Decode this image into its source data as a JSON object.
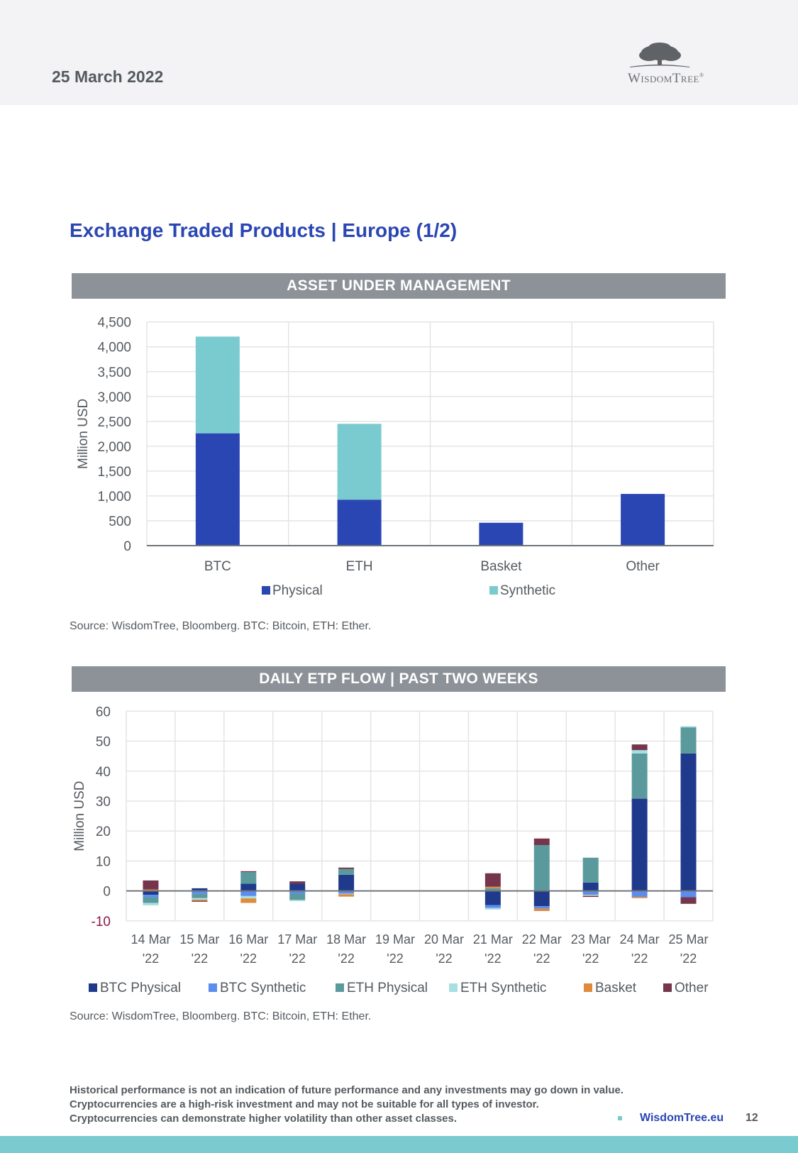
{
  "header": {
    "date": "25 March 2022",
    "logo_text": "WisdomTree",
    "logo_mark": "®"
  },
  "page_title": "Exchange Traded Products | Europe (1/2)",
  "sections": {
    "aum": {
      "banner": "ASSET UNDER MANAGEMENT",
      "source": "Source: WisdomTree, Bloomberg. BTC: Bitcoin, ETH: Ether."
    },
    "flow": {
      "banner": "DAILY ETP FLOW | PAST TWO WEEKS",
      "source": "Source: WisdomTree, Bloomberg. BTC: Bitcoin, ETH: Ether."
    }
  },
  "colors": {
    "physical": "#2a46b3",
    "synthetic": "#7acbd0",
    "btc_physical": "#1f3a8a",
    "btc_synthetic": "#5b8def",
    "eth_physical": "#5a9a9c",
    "eth_synthetic": "#a8dfe3",
    "basket": "#e08a3c",
    "other": "#75364d",
    "negative_tick": "#8b1a4a"
  },
  "chart_data": [
    {
      "type": "bar",
      "stacked": true,
      "title": "ASSET UNDER MANAGEMENT",
      "xlabel": "",
      "ylabel": "Million USD",
      "categories": [
        "BTC",
        "ETH",
        "Basket",
        "Other"
      ],
      "series": [
        {
          "name": "Physical",
          "values": [
            2260,
            925,
            460,
            1040
          ]
        },
        {
          "name": "Synthetic",
          "values": [
            1945,
            1525,
            0,
            0
          ]
        }
      ],
      "ylim": [
        0,
        4500
      ],
      "yticks": [
        0,
        500,
        1000,
        1500,
        2000,
        2500,
        3000,
        3500,
        4000,
        4500
      ],
      "ytick_labels": [
        "0",
        "500",
        "1,000",
        "1,500",
        "2,000",
        "2,500",
        "3,000",
        "3,500",
        "4,000",
        "4,500"
      ],
      "grid": true,
      "legend": "bottom"
    },
    {
      "type": "bar",
      "stacked": true,
      "title": "DAILY ETP FLOW | PAST TWO WEEKS",
      "xlabel": "",
      "ylabel": "Million USD",
      "categories": [
        [
          "14 Mar",
          "'22"
        ],
        [
          "15 Mar",
          "'22"
        ],
        [
          "16 Mar",
          "'22"
        ],
        [
          "17 Mar",
          "'22"
        ],
        [
          "18 Mar",
          "'22"
        ],
        [
          "19 Mar",
          "'22"
        ],
        [
          "20 Mar",
          "'22"
        ],
        [
          "21 Mar",
          "'22"
        ],
        [
          "22 Mar",
          "'22"
        ],
        [
          "23 Mar",
          "'22"
        ],
        [
          "24 Mar",
          "'22"
        ],
        [
          "25 Mar",
          "'22"
        ]
      ],
      "series": [
        {
          "name": "BTC Physical",
          "values": [
            -1.3,
            0.9,
            2.4,
            2.4,
            5.4,
            0,
            0,
            -4.7,
            -5.1,
            2.8,
            30.8,
            45.9
          ]
        },
        {
          "name": "BTC Synthetic",
          "values": [
            -0.8,
            -1.0,
            -1.7,
            -0.9,
            -0.9,
            0,
            0,
            -1.0,
            -0.8,
            -1.3,
            -2.0,
            -2.1
          ]
        },
        {
          "name": "ETH Physical",
          "values": [
            -1.9,
            -1.4,
            3.9,
            -2.1,
            1.9,
            0,
            0,
            0.9,
            15.3,
            8.3,
            15.1,
            8.7
          ]
        },
        {
          "name": "ETH Synthetic",
          "values": [
            -0.8,
            -0.5,
            -0.8,
            -0.4,
            -0.2,
            0,
            0,
            -0.5,
            0,
            -0.2,
            1.1,
            0.4
          ]
        },
        {
          "name": "Basket",
          "values": [
            0.5,
            -0.4,
            -1.5,
            0,
            -0.8,
            0,
            0,
            0.5,
            -0.8,
            -0.2,
            -0.4,
            0
          ]
        },
        {
          "name": "Other",
          "values": [
            3.0,
            -0.3,
            0.3,
            0.8,
            0.5,
            0,
            0,
            4.5,
            2.2,
            -0.3,
            1.9,
            -2.2
          ]
        }
      ],
      "ylim": [
        -10,
        60
      ],
      "yticks": [
        -10,
        0,
        10,
        20,
        30,
        40,
        50,
        60
      ],
      "ytick_labels": [
        "-10",
        "0",
        "10",
        "20",
        "30",
        "40",
        "50",
        "60"
      ],
      "grid": true,
      "legend": "bottom"
    }
  ],
  "footer": {
    "disclaimer": [
      "Historical performance is not an indication of future performance and any investments may go down in value.",
      "Cryptocurrencies are a high-risk investment and may not be suitable for all types of investor.",
      "Cryptocurrencies can demonstrate higher volatility than other asset classes."
    ],
    "link": "WisdomTree.eu",
    "page_number": "12"
  }
}
